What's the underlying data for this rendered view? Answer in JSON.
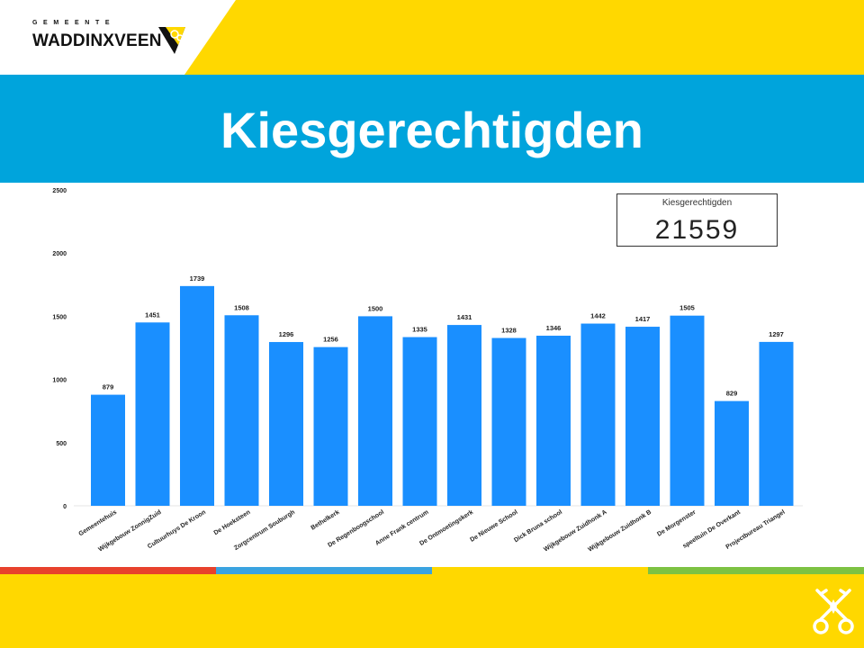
{
  "logo": {
    "top_text": "GEMEENTE",
    "name": "WADDINXVEEN"
  },
  "slide": {
    "title": "Kiesgerechtigden"
  },
  "colors": {
    "yellow": "#ffd800",
    "blue_band": "#00a4dc",
    "bar": "#1a8fff",
    "stripes": [
      "#e8412c",
      "#3aa3e0",
      "#ffd800",
      "#7dc242"
    ]
  },
  "total": {
    "label": "Kiesgerechtigden",
    "value": "21559"
  },
  "chart_data": {
    "type": "bar",
    "title": "",
    "xlabel": "",
    "ylabel": "",
    "ylim": [
      0,
      2500
    ],
    "yticks": [
      0,
      500,
      1000,
      1500,
      2000,
      2500
    ],
    "grid": false,
    "categories": [
      "Gemeentehuis",
      "Wijkgebouw ZonnigZuid",
      "Cultuurhuys De Kroon",
      "De Hoeksteen",
      "Zorgcentrum Souburgh",
      "Bethelkerk",
      "De Regenboogschool",
      "Anne Frank centrum",
      "De Ontmoetingskerk",
      "De Nieuwe School",
      "Dick Bruna school",
      "Wijkgebouw Zuidhonk A",
      "Wijkgebouw Zuidhonk B",
      "De Morgenster",
      "speeltuin De Overkant",
      "Projectbureau Triangel"
    ],
    "values": [
      879,
      1451,
      1739,
      1508,
      1296,
      1256,
      1500,
      1335,
      1431,
      1328,
      1346,
      1442,
      1417,
      1505,
      829,
      1297
    ]
  }
}
